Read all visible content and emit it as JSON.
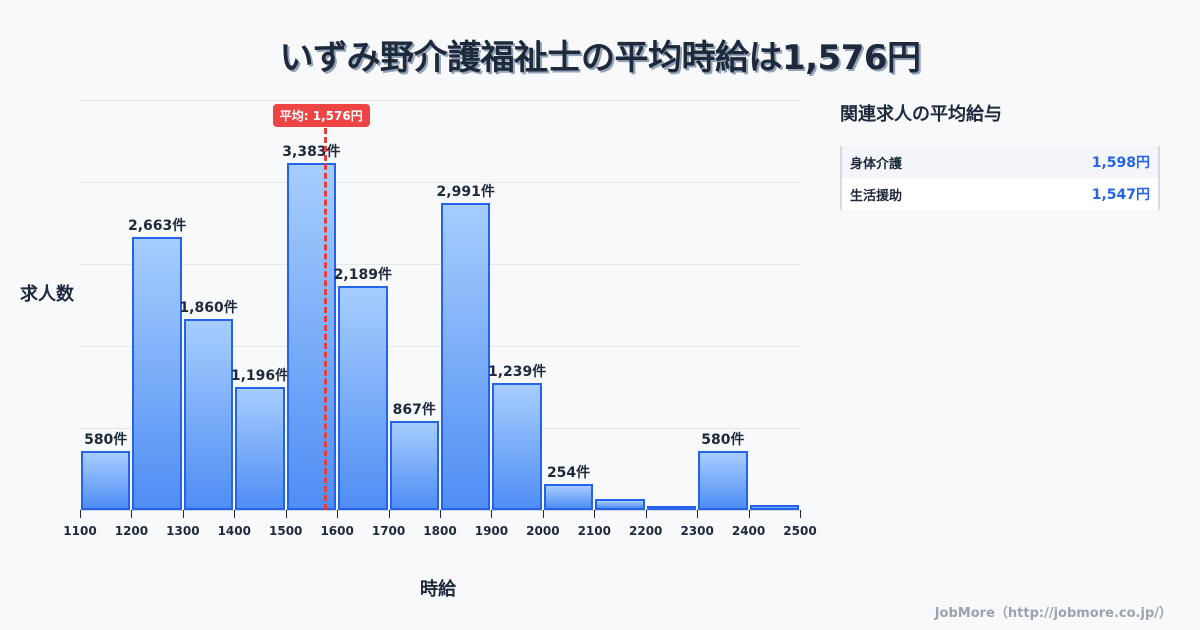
{
  "title": "いずみ野介護福祉士の平均時給は1,576円",
  "chart_data": {
    "type": "bar",
    "title": "いずみ野介護福祉士の平均時給は1,576円",
    "xlabel": "時給",
    "ylabel": "求人数",
    "bins": [
      {
        "range": [
          1100,
          1200
        ],
        "value": 580,
        "label": "580件"
      },
      {
        "range": [
          1200,
          1300
        ],
        "value": 2663,
        "label": "2,663件"
      },
      {
        "range": [
          1300,
          1400
        ],
        "value": 1860,
        "label": "1,860件"
      },
      {
        "range": [
          1400,
          1500
        ],
        "value": 1196,
        "label": "1,196件"
      },
      {
        "range": [
          1500,
          1600
        ],
        "value": 3383,
        "label": "3,383件"
      },
      {
        "range": [
          1600,
          1700
        ],
        "value": 2189,
        "label": "2,189件"
      },
      {
        "range": [
          1700,
          1800
        ],
        "value": 867,
        "label": "867件"
      },
      {
        "range": [
          1800,
          1900
        ],
        "value": 2991,
        "label": "2,991件"
      },
      {
        "range": [
          1900,
          2000
        ],
        "value": 1239,
        "label": "1,239件"
      },
      {
        "range": [
          2000,
          2100
        ],
        "value": 254,
        "label": "254件"
      },
      {
        "range": [
          2100,
          2200
        ],
        "value": 105,
        "label": ""
      },
      {
        "range": [
          2200,
          2300
        ],
        "value": 40,
        "label": ""
      },
      {
        "range": [
          2300,
          2400
        ],
        "value": 580,
        "label": "580件"
      },
      {
        "range": [
          2400,
          2500
        ],
        "value": 50,
        "label": ""
      }
    ],
    "x_ticks": [
      "1100",
      "1200",
      "1300",
      "1400",
      "1500",
      "1600",
      "1700",
      "1800",
      "1900",
      "2000",
      "2100",
      "2200",
      "2300",
      "2400",
      "2500"
    ],
    "xlim": [
      1100,
      2500
    ],
    "ylim": [
      0,
      4000
    ],
    "grid": true,
    "average": {
      "value": 1576,
      "label": "平均: 1,576円"
    }
  },
  "sidebar": {
    "title": "関連求人の平均給与",
    "rows": [
      {
        "name": "身体介護",
        "value": "1,598円"
      },
      {
        "name": "生活援助",
        "value": "1,547円"
      }
    ]
  },
  "credit": "JobMore（http://jobmore.co.jp/）",
  "colors": {
    "bar_border": "#2563eb",
    "bar_top": "#a7cdfd",
    "bar_bottom": "#4f8ef5",
    "average": "#ef4444",
    "value_text": "#2563eb"
  }
}
